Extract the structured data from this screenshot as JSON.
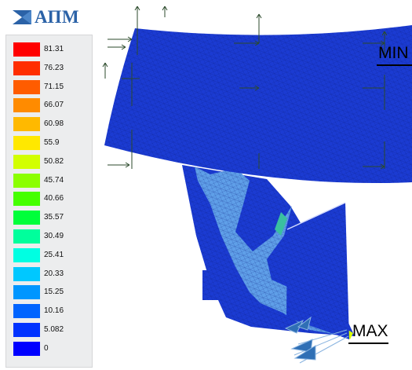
{
  "logo": {
    "text": "АПМ",
    "icon": "logo-flag-icon",
    "color": "#2b62a7"
  },
  "legend": {
    "values": [
      "81.31",
      "76.23",
      "71.15",
      "66.07",
      "60.98",
      "55.9",
      "50.82",
      "45.74",
      "40.66",
      "35.57",
      "30.49",
      "25.41",
      "20.33",
      "15.25",
      "10.16",
      "5.082",
      "0"
    ],
    "colors": [
      "#ff0000",
      "#ff2e00",
      "#ff5c00",
      "#ff8b00",
      "#ffb900",
      "#ffe800",
      "#d2ff00",
      "#8bff00",
      "#45ff00",
      "#00ff3a",
      "#00ff9c",
      "#00ffe2",
      "#00c8ff",
      "#0096ff",
      "#0064ff",
      "#0032ff",
      "#0000ff"
    ]
  },
  "markers": {
    "min_label": "MIN",
    "max_label": "MAX"
  },
  "model": {
    "base_color": "#1b3bd2",
    "light_color": "#5f9fe8"
  }
}
